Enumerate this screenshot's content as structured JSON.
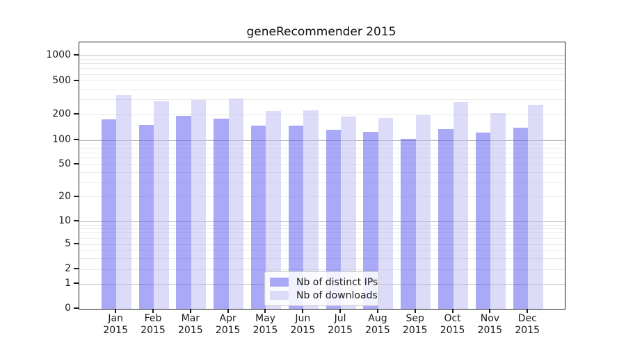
{
  "title": "geneRecommender 2015",
  "chart_data": {
    "type": "bar",
    "title": "geneRecommender 2015",
    "categories": [
      "Jan 2015",
      "Feb 2015",
      "Mar 2015",
      "Apr 2015",
      "May 2015",
      "Jun 2015",
      "Jul 2015",
      "Aug 2015",
      "Sep 2015",
      "Oct 2015",
      "Nov 2015",
      "Dec 2015"
    ],
    "month_labels": [
      "Jan",
      "Feb",
      "Mar",
      "Apr",
      "May",
      "Jun",
      "Jul",
      "Aug",
      "Sep",
      "Oct",
      "Nov",
      "Dec"
    ],
    "year_label": "2015",
    "series": [
      {
        "name": "Nb of distinct IPs",
        "color": "#a9a9f7",
        "color_rgba": "rgba(83,83,239,0.5)",
        "values": [
          176,
          152,
          192,
          181,
          149,
          148,
          133,
          125,
          104,
          135,
          123,
          140
        ]
      },
      {
        "name": "Nb of downloads",
        "color": "#dcdcf9",
        "color_rgba": "rgba(185,185,243,0.5)",
        "values": [
          340,
          289,
          301,
          308,
          221,
          225,
          190,
          183,
          197,
          284,
          210,
          261
        ]
      }
    ],
    "xlabel": "",
    "ylabel": "",
    "yscale": "symlog",
    "y_tick_labels": [
      "1000",
      "500",
      "200",
      "100",
      "50",
      "20",
      "10",
      "5",
      "2",
      "1",
      "0"
    ],
    "y_tick_values": [
      1000,
      500,
      200,
      100,
      50,
      20,
      10,
      5,
      2,
      1,
      0
    ],
    "ylim": [
      0,
      1400
    ],
    "grid": "horizontal major+minor",
    "legend_position": "lower center"
  }
}
